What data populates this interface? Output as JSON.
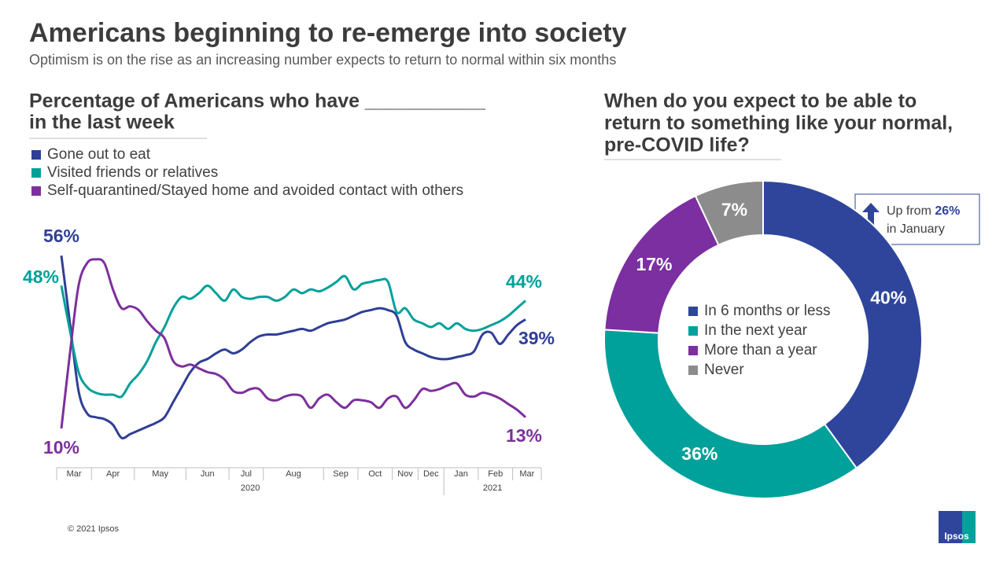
{
  "title": "Americans beginning to re-emerge into society",
  "subtitle": "Optimism is on the rise as an increasing number expects to return to normal within six months",
  "footer": "© 2021 Ipsos",
  "logo": "Ipsos",
  "chart_data": [
    {
      "type": "line",
      "title": [
        "Percentage of Americans who have ___________",
        "in the last week"
      ],
      "categories": [
        "Mar",
        "Mar",
        "Mar",
        "Mar",
        "Apr",
        "Apr",
        "Apr",
        "Apr",
        "Apr",
        "May",
        "May",
        "May",
        "May",
        "May",
        "May",
        "Jun",
        "Jun",
        "Jun",
        "Jun",
        "Jun",
        "Jul",
        "Jul",
        "Jul",
        "Jul",
        "Aug",
        "Aug",
        "Aug",
        "Aug",
        "Aug",
        "Aug",
        "Aug",
        "Sep",
        "Sep",
        "Sep",
        "Sep",
        "Oct",
        "Oct",
        "Oct",
        "Oct",
        "Nov",
        "Nov",
        "Nov",
        "Dec",
        "Dec",
        "Dec",
        "Jan",
        "Jan",
        "Jan",
        "Jan",
        "Feb",
        "Feb",
        "Feb",
        "Feb",
        "Mar",
        "Mar"
      ],
      "years": [
        "2020",
        "2020",
        "2020",
        "2020",
        "2020",
        "2020",
        "2020",
        "2020",
        "2020",
        "2020",
        "2020",
        "2020",
        "2020",
        "2020",
        "2020",
        "2020",
        "2020",
        "2020",
        "2020",
        "2020",
        "2020",
        "2020",
        "2020",
        "2020",
        "2020",
        "2020",
        "2020",
        "2020",
        "2020",
        "2020",
        "2020",
        "2020",
        "2020",
        "2020",
        "2020",
        "2020",
        "2020",
        "2020",
        "2020",
        "2020",
        "2020",
        "2020",
        "2020",
        "2020",
        "2020",
        "2021",
        "2021",
        "2021",
        "2021",
        "2021",
        "2021",
        "2021",
        "2021",
        "2021",
        "2021"
      ],
      "ylim": [
        5,
        60
      ],
      "series": [
        {
          "name": "Gone out to eat",
          "color": "#2f3f96",
          "values": [
            56,
            38,
            20,
            14,
            13,
            12.5,
            11,
            7.5,
            8.5,
            9.5,
            10.5,
            11.5,
            13,
            17,
            21,
            25,
            27.5,
            28.5,
            30,
            31,
            30,
            31,
            33,
            34.5,
            35,
            35,
            35.5,
            36,
            36.5,
            36,
            37,
            38,
            38.5,
            39,
            40,
            41,
            41.5,
            42,
            41.5,
            40,
            33,
            31,
            30,
            29,
            28.5,
            28.5,
            29,
            29.5,
            30.5,
            35,
            35.5,
            32.5,
            35,
            37.5,
            39
          ],
          "value_labels": [
            "56%",
            null,
            null,
            null,
            null,
            null,
            null,
            null,
            null,
            null,
            null,
            null,
            null,
            null,
            null,
            null,
            null,
            null,
            null,
            null,
            null,
            null,
            null,
            null,
            null,
            null,
            null,
            null,
            null,
            null,
            null,
            null,
            null,
            null,
            null,
            null,
            null,
            null,
            null,
            null,
            null,
            null,
            null,
            null,
            null,
            null,
            null,
            null,
            null,
            null,
            null,
            null,
            null,
            null,
            "39%"
          ]
        },
        {
          "name": "Visited friends or relatives",
          "color": "#00a09a",
          "values": [
            48,
            36,
            25,
            21,
            19.5,
            19,
            19,
            18.5,
            22,
            24.5,
            28,
            33,
            37,
            42,
            45,
            44.5,
            46,
            48,
            46,
            44,
            47,
            45,
            44.5,
            45,
            45,
            44,
            45,
            47,
            46,
            47,
            46.5,
            47.5,
            49,
            50.5,
            47,
            48.5,
            49,
            49.5,
            49,
            41,
            42,
            39,
            38,
            37,
            38,
            36.5,
            38,
            36.5,
            36,
            36.5,
            37.5,
            38.5,
            40,
            42,
            44
          ],
          "value_labels": [
            "48%",
            null,
            null,
            null,
            null,
            null,
            null,
            null,
            null,
            null,
            null,
            null,
            null,
            null,
            null,
            null,
            null,
            null,
            null,
            null,
            null,
            null,
            null,
            null,
            null,
            null,
            null,
            null,
            null,
            null,
            null,
            null,
            null,
            null,
            null,
            null,
            null,
            null,
            null,
            null,
            null,
            null,
            null,
            null,
            null,
            null,
            null,
            null,
            null,
            null,
            null,
            null,
            null,
            null,
            "44%"
          ]
        },
        {
          "name": "Self-quarantined/Stayed home and avoided contact with others",
          "color": "#7d2f9c",
          "values": [
            10,
            30,
            48,
            54,
            55,
            54,
            47,
            42,
            42.5,
            41.5,
            38.5,
            36,
            34,
            28,
            26.5,
            27,
            26,
            25,
            24.5,
            23,
            20,
            19.5,
            20.5,
            20.5,
            18,
            17.5,
            18.5,
            19,
            18.5,
            15.5,
            18,
            19,
            17,
            15.5,
            17.5,
            17.5,
            17,
            15.5,
            18,
            18.5,
            15.5,
            17.5,
            20.5,
            20,
            20.5,
            21.5,
            22,
            19,
            18.5,
            19.5,
            19,
            18,
            16.5,
            15,
            13
          ],
          "value_labels": [
            "10%",
            null,
            null,
            null,
            null,
            null,
            null,
            null,
            null,
            null,
            null,
            null,
            null,
            null,
            null,
            null,
            null,
            null,
            null,
            null,
            null,
            null,
            null,
            null,
            null,
            null,
            null,
            null,
            null,
            null,
            null,
            null,
            null,
            null,
            null,
            null,
            null,
            null,
            null,
            null,
            null,
            null,
            null,
            null,
            null,
            null,
            null,
            null,
            null,
            null,
            null,
            null,
            null,
            null,
            "13%"
          ]
        }
      ]
    },
    {
      "type": "pie",
      "title": [
        "When do you expect to be able to",
        "return to something like your normal,",
        "pre-COVID life?"
      ],
      "categories": [
        "In 6 months or less",
        "In the next year",
        "More than a year",
        "Never"
      ],
      "values": [
        40,
        36,
        17,
        7
      ],
      "value_labels": [
        "40%",
        "36%",
        "17%",
        "7%"
      ],
      "colors": [
        "#2f459b",
        "#00a19a",
        "#7b2fa0",
        "#8c8c8c"
      ],
      "annotation": {
        "prefix": "Up from",
        "highlight": "26%",
        "suffix": "in January"
      }
    }
  ]
}
